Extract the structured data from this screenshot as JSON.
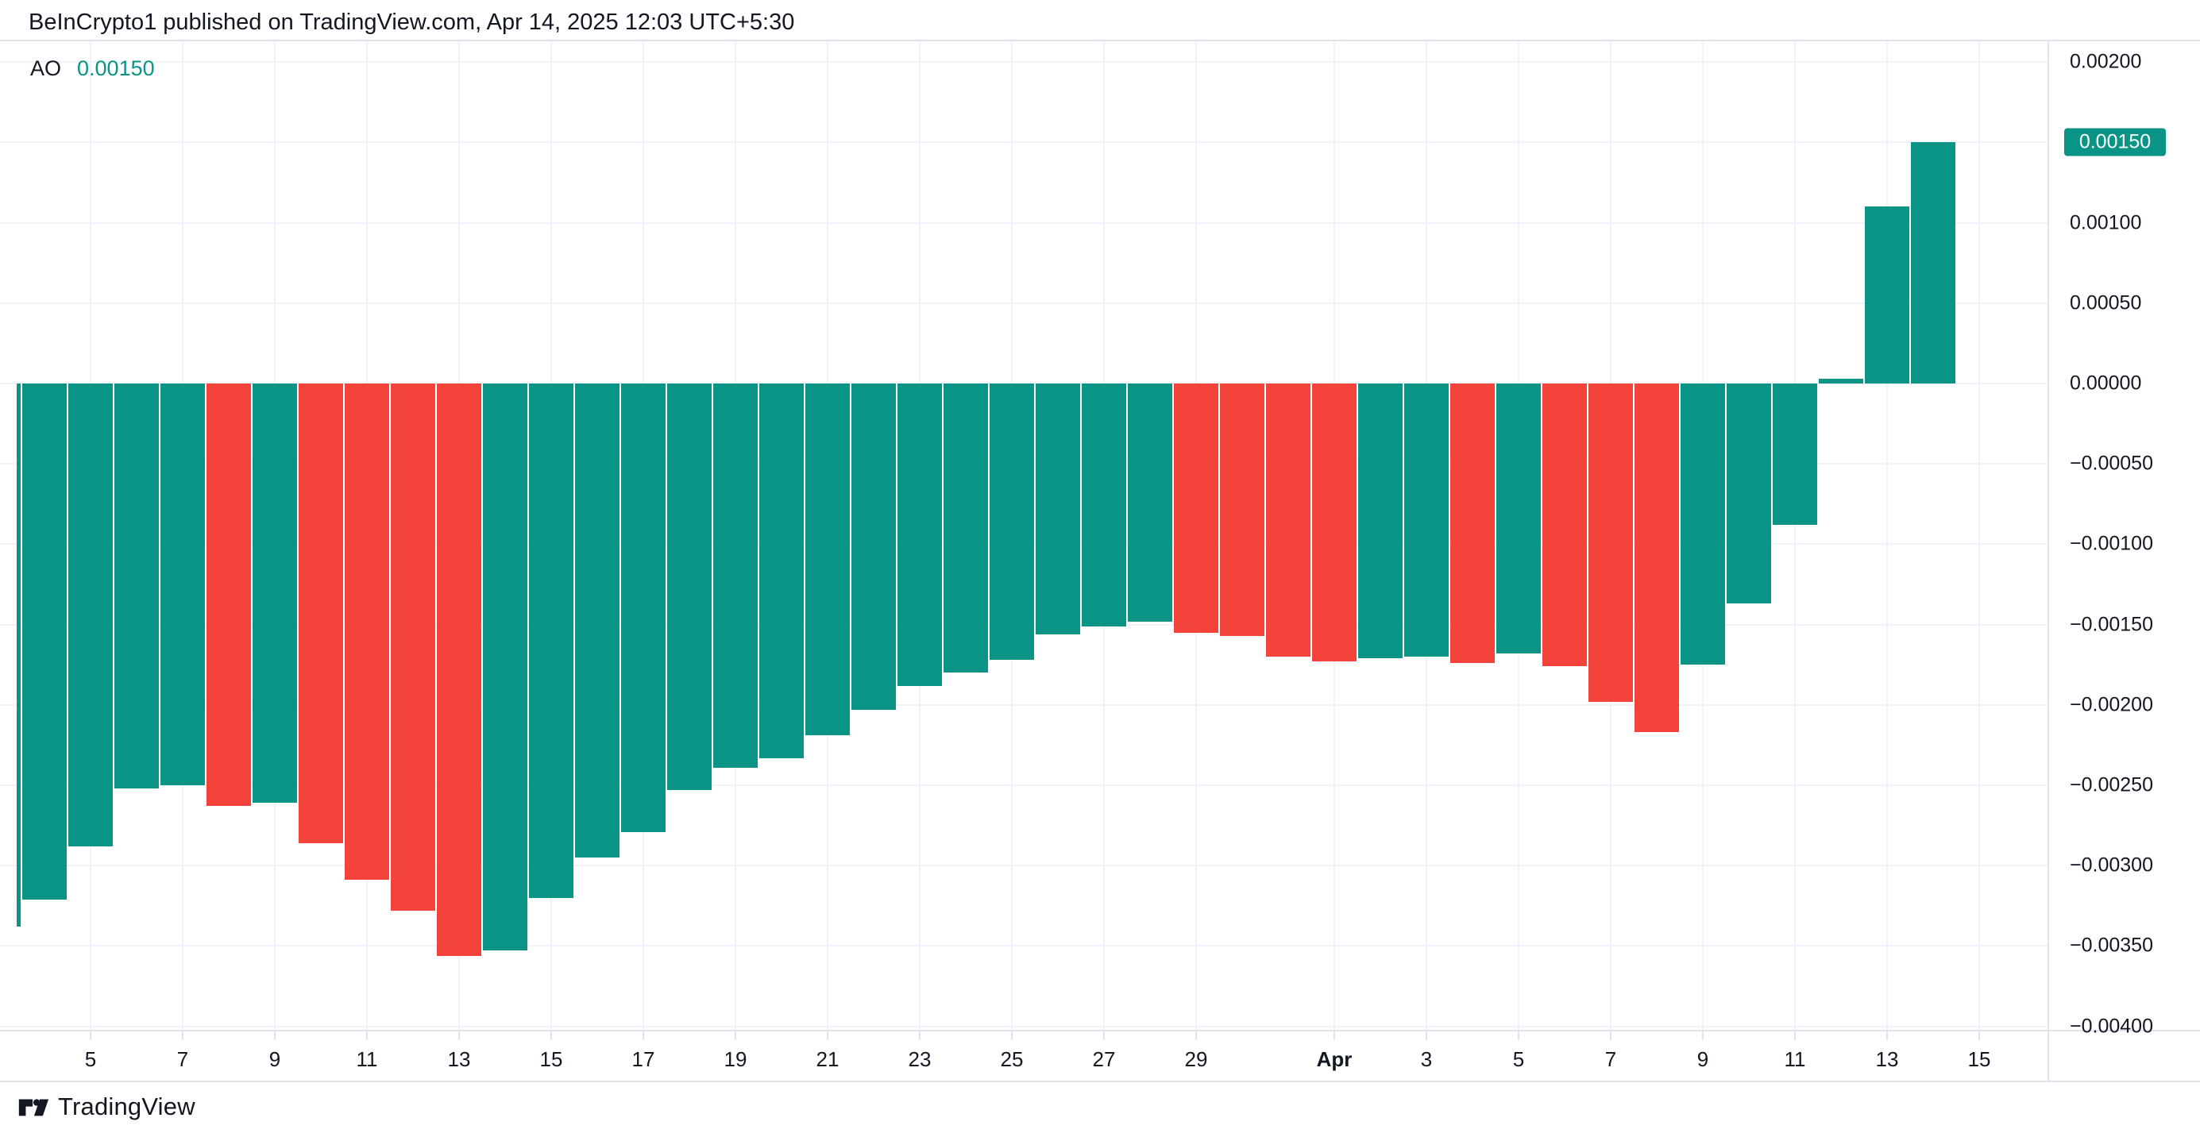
{
  "header": {
    "title": "BeInCrypto1 published on TradingView.com, Apr 14, 2025 12:03 UTC+5:30"
  },
  "indicator": {
    "name": "AO",
    "value": "0.00150"
  },
  "colors": {
    "up": "#0A9486",
    "down": "#F4433A",
    "grid": "#F0F3FA",
    "border": "#E0E3EB",
    "text": "#131722",
    "badge_bg": "#0A9486",
    "badge_text": "#FFFFFF",
    "background": "#FFFFFF"
  },
  "chart_data": {
    "type": "bar",
    "title": "AO (Awesome Oscillator) histogram",
    "x": [
      "Mar 3",
      "Mar 4",
      "Mar 5",
      "Mar 6",
      "Mar 7",
      "Mar 8",
      "Mar 9",
      "Mar 10",
      "Mar 11",
      "Mar 12",
      "Mar 13",
      "Mar 14",
      "Mar 15",
      "Mar 16",
      "Mar 17",
      "Mar 18",
      "Mar 19",
      "Mar 20",
      "Mar 21",
      "Mar 22",
      "Mar 23",
      "Mar 24",
      "Mar 25",
      "Mar 26",
      "Mar 27",
      "Mar 28",
      "Mar 29",
      "Mar 30",
      "Mar 31",
      "Apr 1",
      "Apr 2",
      "Apr 3",
      "Apr 4",
      "Apr 5",
      "Apr 6",
      "Apr 7",
      "Apr 8",
      "Apr 9",
      "Apr 10",
      "Apr 11",
      "Apr 12",
      "Apr 13",
      "Apr 14"
    ],
    "values": [
      -0.00338,
      -0.00321,
      -0.00288,
      -0.00252,
      -0.0025,
      -0.00263,
      -0.00261,
      -0.00286,
      -0.00309,
      -0.00328,
      -0.00356,
      -0.00353,
      -0.0032,
      -0.00295,
      -0.00279,
      -0.00253,
      -0.00239,
      -0.00233,
      -0.00219,
      -0.00203,
      -0.00188,
      -0.0018,
      -0.00172,
      -0.00156,
      -0.00151,
      -0.00148,
      -0.00155,
      -0.00157,
      -0.0017,
      -0.00173,
      -0.00171,
      -0.0017,
      -0.00174,
      -0.00168,
      -0.00176,
      -0.00198,
      -0.00217,
      -0.00175,
      -0.00137,
      -0.00088,
      3e-05,
      0.0011,
      0.0015
    ],
    "directions": [
      "up",
      "up",
      "up",
      "up",
      "up",
      "down",
      "up",
      "down",
      "down",
      "down",
      "down",
      "up",
      "up",
      "up",
      "up",
      "up",
      "up",
      "up",
      "up",
      "up",
      "up",
      "up",
      "up",
      "up",
      "up",
      "up",
      "down",
      "down",
      "down",
      "down",
      "up",
      "up",
      "down",
      "up",
      "down",
      "down",
      "down",
      "up",
      "up",
      "up",
      "up",
      "up",
      "up"
    ],
    "ylim": [
      -0.004,
      0.002
    ],
    "grid": true,
    "legend_position": "none",
    "last_value": 0.0015,
    "y_ticks": [
      {
        "label": "0.00200",
        "value": 0.002,
        "badge": false
      },
      {
        "label": "0.00150",
        "value": 0.0015,
        "badge": true
      },
      {
        "label": "0.00100",
        "value": 0.001,
        "badge": false
      },
      {
        "label": "0.00050",
        "value": 0.0005,
        "badge": false
      },
      {
        "label": "0.00000",
        "value": 0.0,
        "badge": false
      },
      {
        "label": "−0.00050",
        "value": -0.0005,
        "badge": false
      },
      {
        "label": "−0.00100",
        "value": -0.001,
        "badge": false
      },
      {
        "label": "−0.00150",
        "value": -0.0015,
        "badge": false
      },
      {
        "label": "−0.00200",
        "value": -0.002,
        "badge": false
      },
      {
        "label": "−0.00250",
        "value": -0.0025,
        "badge": false
      },
      {
        "label": "−0.00300",
        "value": -0.003,
        "badge": false
      },
      {
        "label": "−0.00350",
        "value": -0.0035,
        "badge": false
      },
      {
        "label": "−0.00400",
        "value": -0.004,
        "badge": false
      }
    ],
    "x_ticks": [
      {
        "label": "5",
        "bar": 3,
        "bold": false
      },
      {
        "label": "7",
        "bar": 5,
        "bold": false
      },
      {
        "label": "9",
        "bar": 7,
        "bold": false
      },
      {
        "label": "11",
        "bar": 9,
        "bold": false
      },
      {
        "label": "13",
        "bar": 11,
        "bold": false
      },
      {
        "label": "15",
        "bar": 13,
        "bold": false
      },
      {
        "label": "17",
        "bar": 15,
        "bold": false
      },
      {
        "label": "19",
        "bar": 17,
        "bold": false
      },
      {
        "label": "21",
        "bar": 19,
        "bold": false
      },
      {
        "label": "23",
        "bar": 21,
        "bold": false
      },
      {
        "label": "25",
        "bar": 23,
        "bold": false
      },
      {
        "label": "27",
        "bar": 25,
        "bold": false
      },
      {
        "label": "29",
        "bar": 27,
        "bold": false
      },
      {
        "label": "Apr",
        "bar": 30,
        "bold": true
      },
      {
        "label": "3",
        "bar": 32,
        "bold": false
      },
      {
        "label": "5",
        "bar": 34,
        "bold": false
      },
      {
        "label": "7",
        "bar": 36,
        "bold": false
      },
      {
        "label": "9",
        "bar": 38,
        "bold": false
      },
      {
        "label": "11",
        "bar": 40,
        "bold": false
      },
      {
        "label": "13",
        "bar": 42,
        "bold": false
      },
      {
        "label": "15",
        "bar": 44,
        "bold": false
      }
    ]
  },
  "footer": {
    "brand": "TradingView"
  }
}
